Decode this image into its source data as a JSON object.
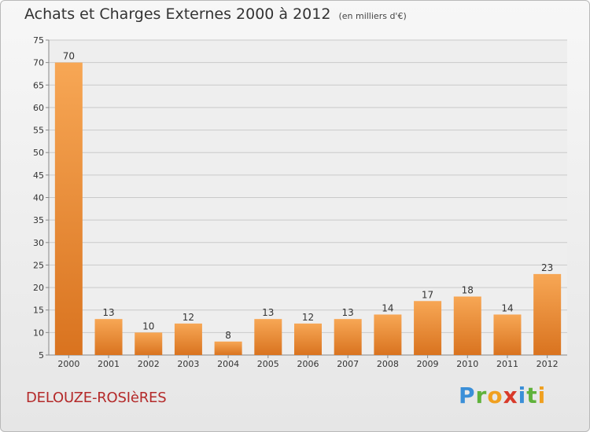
{
  "header": {
    "title": "Achats et Charges Externes 2000 à 2012",
    "subtitle": "(en milliers d'€)"
  },
  "footer": {
    "commune": "DELOUZE-ROSIèRES",
    "logo_letters": [
      "P",
      "r",
      "o",
      "x",
      "i",
      "t",
      "i"
    ]
  },
  "chart_data": {
    "type": "bar",
    "title": "Achats et Charges Externes 2000 à 2012",
    "subtitle": "(en milliers d'€)",
    "xlabel": "",
    "ylabel": "",
    "categories": [
      "2000",
      "2001",
      "2002",
      "2003",
      "2004",
      "2005",
      "2006",
      "2007",
      "2008",
      "2009",
      "2010",
      "2011",
      "2012"
    ],
    "values": [
      70,
      13,
      10,
      12,
      8,
      13,
      12,
      13,
      14,
      17,
      18,
      14,
      23
    ],
    "ylim": [
      5,
      75
    ],
    "yticks": [
      5,
      10,
      15,
      20,
      25,
      30,
      35,
      40,
      45,
      50,
      55,
      60,
      65,
      70,
      75
    ],
    "grid": "horizontal",
    "colors": {
      "bar_light": "#f7a755",
      "bar_dark": "#d9731f",
      "grid": "#c9c9c9",
      "axis": "#888888"
    }
  }
}
